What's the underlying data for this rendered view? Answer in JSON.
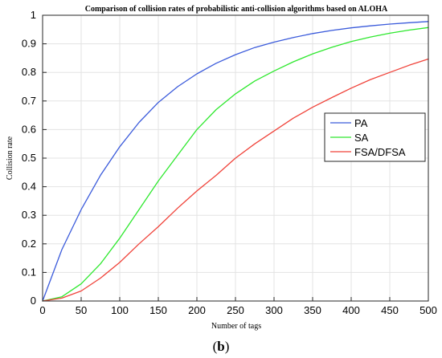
{
  "chart_data": {
    "type": "line",
    "title": "Comparison of collision rates of probabilistic anti-collision algorithms based on ALOHA",
    "xlabel": "Number of tags",
    "ylabel": "Collision rate",
    "xlim": [
      0,
      500
    ],
    "ylim": [
      0,
      1
    ],
    "x_ticks": [
      0,
      50,
      100,
      150,
      200,
      250,
      300,
      350,
      400,
      450,
      500
    ],
    "y_ticks": [
      0,
      0.1,
      0.2,
      0.3,
      0.4,
      0.5,
      0.6,
      0.7,
      0.8,
      0.9,
      1
    ],
    "x_tick_labels": [
      "0",
      "50",
      "100",
      "150",
      "200",
      "250",
      "300",
      "350",
      "400",
      "450",
      "500"
    ],
    "y_tick_labels": [
      "0",
      "0.1",
      "0.2",
      "0.3",
      "0.4",
      "0.5",
      "0.6",
      "0.7",
      "0.8",
      "0.9",
      "1"
    ],
    "grid": true,
    "legend_position": "right-middle",
    "x": [
      0,
      25,
      50,
      75,
      100,
      125,
      150,
      175,
      200,
      225,
      250,
      275,
      300,
      325,
      350,
      375,
      400,
      425,
      450,
      475,
      500
    ],
    "series": [
      {
        "name": "PA",
        "color": "#3b5bdb",
        "values": [
          0,
          0.18,
          0.32,
          0.44,
          0.54,
          0.625,
          0.695,
          0.75,
          0.795,
          0.832,
          0.862,
          0.887,
          0.906,
          0.922,
          0.936,
          0.947,
          0.956,
          0.963,
          0.969,
          0.974,
          0.978
        ]
      },
      {
        "name": "SA",
        "color": "#2ee82e",
        "values": [
          0,
          0.015,
          0.06,
          0.13,
          0.22,
          0.32,
          0.42,
          0.51,
          0.6,
          0.67,
          0.725,
          0.77,
          0.805,
          0.837,
          0.865,
          0.888,
          0.908,
          0.924,
          0.937,
          0.948,
          0.957
        ]
      },
      {
        "name": "FSA/DFSA",
        "color": "#f0433a",
        "values": [
          0,
          0.01,
          0.035,
          0.08,
          0.135,
          0.2,
          0.26,
          0.325,
          0.385,
          0.44,
          0.5,
          0.55,
          0.595,
          0.64,
          0.678,
          0.712,
          0.745,
          0.775,
          0.8,
          0.825,
          0.847
        ]
      }
    ]
  },
  "caption": {
    "open_paren": "(",
    "letter": "b",
    "close_paren": ")"
  }
}
